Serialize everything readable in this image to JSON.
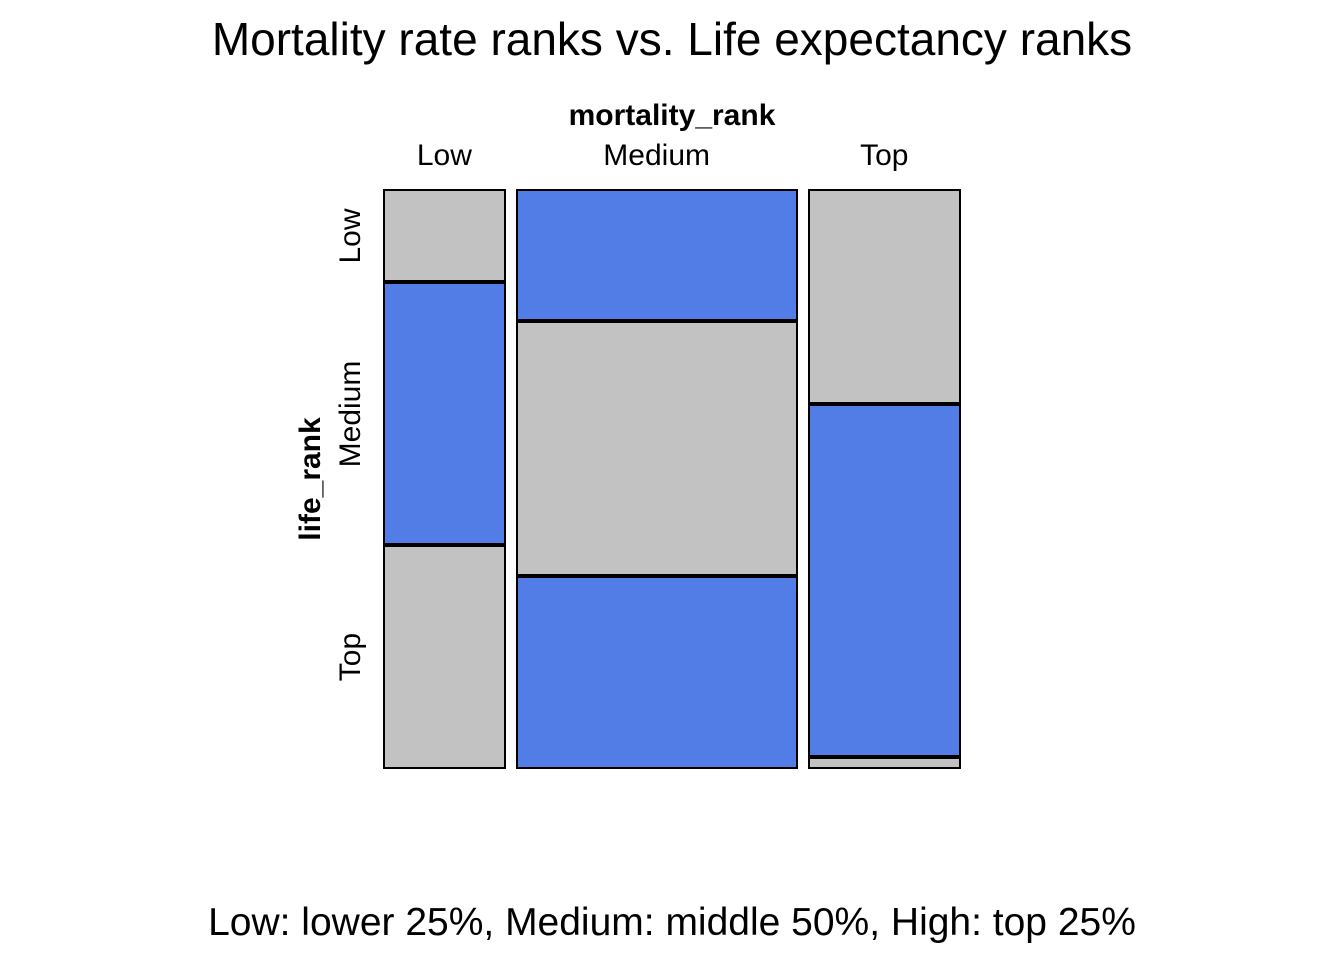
{
  "title": "Mortality rate ranks vs. Life expectancy ranks",
  "caption": "Low: lower 25%, Medium: middle 50%, High: top 25%",
  "chart_data": {
    "type": "mosaic",
    "title": "Mortality rate ranks vs. Life expectancy ranks",
    "x_variable": "mortality_rank",
    "y_variable": "life_rank",
    "x_categories": [
      "Low",
      "Medium",
      "Top"
    ],
    "y_categories": [
      "Low",
      "Medium",
      "Top"
    ],
    "caption": "Low: lower 25%, Medium: middle 50%, High: top 25%",
    "legend": "none",
    "grid": "off",
    "colors": {
      "gray": "#C2C2C2",
      "blue": "#527DE6",
      "border": "#000000",
      "background": "#FFFFFF",
      "text": "#000000"
    },
    "column_width_fractions": [
      0.22,
      0.505,
      0.275
    ],
    "columns": [
      {
        "x_category": "Low",
        "segments": [
          {
            "y_category": "Low",
            "fraction": 0.161,
            "color": "gray"
          },
          {
            "y_category": "Medium",
            "fraction": 0.453,
            "color": "blue"
          },
          {
            "y_category": "Top",
            "fraction": 0.386,
            "color": "gray"
          }
        ]
      },
      {
        "x_category": "Medium",
        "segments": [
          {
            "y_category": "Low",
            "fraction": 0.228,
            "color": "blue"
          },
          {
            "y_category": "Medium",
            "fraction": 0.439,
            "color": "gray"
          },
          {
            "y_category": "Top",
            "fraction": 0.333,
            "color": "blue"
          }
        ]
      },
      {
        "x_category": "Top",
        "segments": [
          {
            "y_category": "Low",
            "fraction": 0.371,
            "color": "gray"
          },
          {
            "y_category": "Medium",
            "fraction": 0.608,
            "color": "blue"
          },
          {
            "y_category": "Top",
            "fraction": 0.021,
            "color": "gray"
          }
        ]
      }
    ]
  }
}
